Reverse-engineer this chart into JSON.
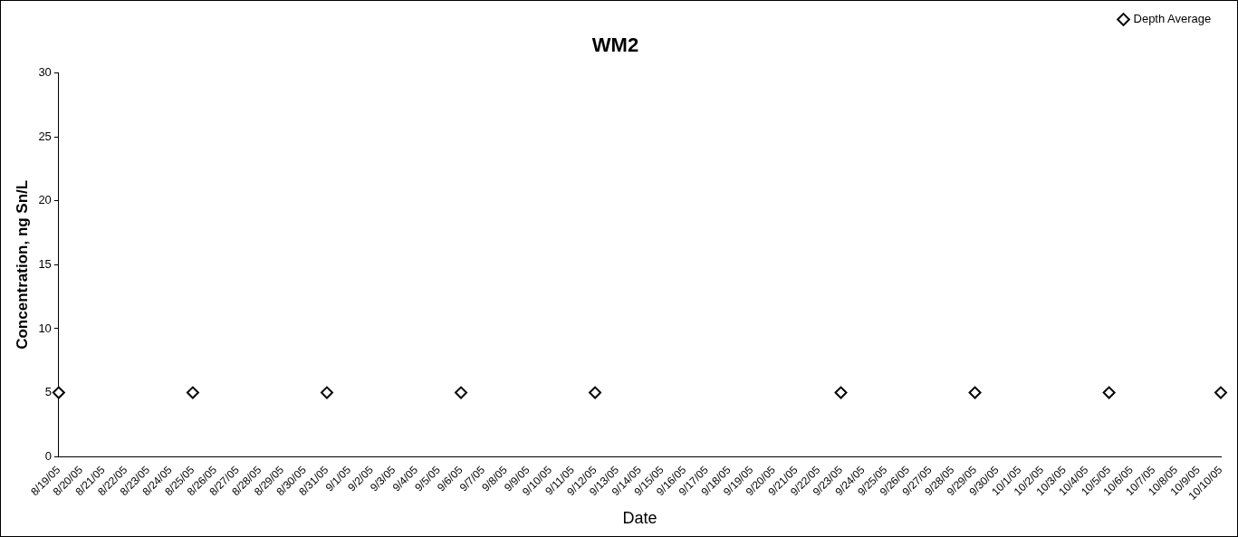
{
  "chart_data": {
    "type": "scatter",
    "title": "WM2",
    "xlabel": "Date",
    "ylabel": "Concentration, ng Sn/L",
    "series": [
      {
        "name": "Depth Average",
        "color": "#000000",
        "x": [
          "--08-19",
          "--08-25",
          "--08-31",
          "--09-06",
          "--09-12",
          "--09-23",
          "--09-29",
          "--10-05",
          "--10-10"
        ],
        "values": [
          5,
          5,
          5,
          5,
          5,
          5,
          5,
          5,
          5
        ]
      }
    ],
    "marker": "diamond",
    "legend": "top right",
    "grid": false,
    "xlim": [
      "--08-19",
      "--10-10"
    ],
    "xticks": [
      {
        "value": "--08-19",
        "label": "8/19/05"
      },
      {
        "value": "--08-20",
        "label": "8/20/05"
      },
      {
        "value": "--08-21",
        "label": "8/21/05"
      },
      {
        "value": "--08-22",
        "label": "8/22/05"
      },
      {
        "value": "--08-23",
        "label": "8/23/05"
      },
      {
        "value": "--08-24",
        "label": "8/24/05"
      },
      {
        "value": "--08-25",
        "label": "8/25/05"
      },
      {
        "value": "--08-26",
        "label": "8/26/05"
      },
      {
        "value": "--08-27",
        "label": "8/27/05"
      },
      {
        "value": "--08-28",
        "label": "8/28/05"
      },
      {
        "value": "--08-29",
        "label": "8/29/05"
      },
      {
        "value": "--08-30",
        "label": "8/30/05"
      },
      {
        "value": "--08-31",
        "label": "8/31/05"
      },
      {
        "value": "--09-01",
        "label": "9/1/05"
      },
      {
        "value": "--09-02",
        "label": "9/2/05"
      },
      {
        "value": "--09-03",
        "label": "9/3/05"
      },
      {
        "value": "--09-04",
        "label": "9/4/05"
      },
      {
        "value": "--09-05",
        "label": "9/5/05"
      },
      {
        "value": "--09-06",
        "label": "9/6/05"
      },
      {
        "value": "--09-07",
        "label": "9/7/05"
      },
      {
        "value": "--09-08",
        "label": "9/8/05"
      },
      {
        "value": "--09-09",
        "label": "9/9/05"
      },
      {
        "value": "--09-10",
        "label": "9/10/05"
      },
      {
        "value": "--09-11",
        "label": "9/11/05"
      },
      {
        "value": "--09-12",
        "label": "9/12/05"
      },
      {
        "value": "--09-13",
        "label": "9/13/05"
      },
      {
        "value": "--09-14",
        "label": "9/14/05"
      },
      {
        "value": "--09-15",
        "label": "9/15/05"
      },
      {
        "value": "--09-16",
        "label": "9/16/05"
      },
      {
        "value": "--09-17",
        "label": "9/17/05"
      },
      {
        "value": "--09-18",
        "label": "9/18/05"
      },
      {
        "value": "--09-19",
        "label": "9/19/05"
      },
      {
        "value": "--09-20",
        "label": "9/20/05"
      },
      {
        "value": "--09-21",
        "label": "9/21/05"
      },
      {
        "value": "--09-22",
        "label": "9/22/05"
      },
      {
        "value": "--09-23",
        "label": "9/23/05"
      },
      {
        "value": "--09-24",
        "label": "9/24/05"
      },
      {
        "value": "--09-25",
        "label": "9/25/05"
      },
      {
        "value": "--09-26",
        "label": "9/26/05"
      },
      {
        "value": "--09-27",
        "label": "9/27/05"
      },
      {
        "value": "--09-28",
        "label": "9/28/05"
      },
      {
        "value": "--09-29",
        "label": "9/29/05"
      },
      {
        "value": "--09-30",
        "label": "9/30/05"
      },
      {
        "value": "--10-01",
        "label": "10/1/05"
      },
      {
        "value": "--10-02",
        "label": "10/2/05"
      },
      {
        "value": "--10-03",
        "label": "10/3/05"
      },
      {
        "value": "--10-04",
        "label": "10/4/05"
      },
      {
        "value": "--10-05",
        "label": "10/5/05"
      },
      {
        "value": "--10-06",
        "label": "10/6/05"
      },
      {
        "value": "--10-07",
        "label": "10/7/05"
      },
      {
        "value": "--10-08",
        "label": "10/8/05"
      },
      {
        "value": "--10-09",
        "label": "10/9/05"
      },
      {
        "value": "--10-10",
        "label": "10/10/05"
      }
    ],
    "ylim": [
      0,
      30
    ],
    "yticks": [
      0,
      5,
      10,
      15,
      20,
      25,
      30
    ]
  }
}
